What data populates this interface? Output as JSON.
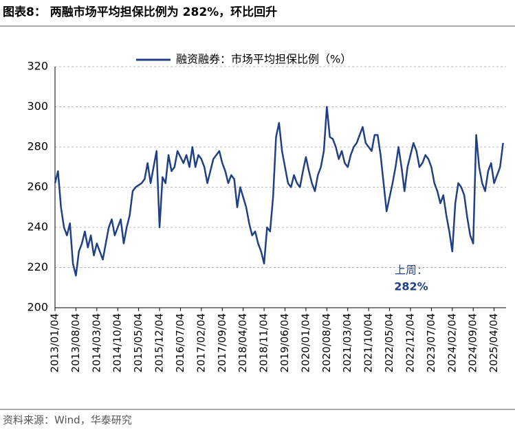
{
  "chart_data": {
    "type": "line",
    "title": "图表8：  两融市场平均担保比例为 282%，环比回升",
    "source": "资料来源：Wind，华泰研究",
    "annotation": [
      "上周：",
      "282%"
    ],
    "x": [
      "2013/01/04",
      "2013/02/04",
      "2013/03/04",
      "2013/04/04",
      "2013/05/04",
      "2013/06/04",
      "2013/07/04",
      "2013/08/04",
      "2013/09/04",
      "2013/10/04",
      "2013/11/04",
      "2013/12/04",
      "2014/01/04",
      "2014/02/04",
      "2014/03/04",
      "2014/04/04",
      "2014/05/04",
      "2014/06/04",
      "2014/07/04",
      "2014/08/04",
      "2014/09/04",
      "2014/10/04",
      "2014/11/04",
      "2014/12/04",
      "2015/01/04",
      "2015/02/04",
      "2015/03/04",
      "2015/04/04",
      "2015/05/04",
      "2015/06/04",
      "2015/07/04",
      "2015/08/04",
      "2015/09/04",
      "2015/10/04",
      "2015/11/04",
      "2015/12/04",
      "2016/01/04",
      "2016/02/04",
      "2016/03/04",
      "2016/04/04",
      "2016/05/04",
      "2016/06/04",
      "2016/07/04",
      "2016/08/04",
      "2016/09/04",
      "2016/10/04",
      "2016/11/04",
      "2016/12/04",
      "2017/01/04",
      "2017/02/04",
      "2017/03/04",
      "2017/04/04",
      "2017/05/04",
      "2017/06/04",
      "2017/07/04",
      "2017/08/04",
      "2017/09/04",
      "2017/10/04",
      "2017/11/04",
      "2017/12/04",
      "2018/01/04",
      "2018/02/04",
      "2018/03/04",
      "2018/04/04",
      "2018/05/04",
      "2018/06/04",
      "2018/07/04",
      "2018/08/04",
      "2018/09/04",
      "2018/10/04",
      "2018/11/04",
      "2018/12/04",
      "2019/01/04",
      "2019/02/04",
      "2019/03/04",
      "2019/04/04",
      "2019/05/04",
      "2019/06/04",
      "2019/07/04",
      "2019/08/04",
      "2019/09/04",
      "2019/10/04",
      "2019/11/04",
      "2019/12/04",
      "2020/01/04",
      "2020/02/04",
      "2020/03/04",
      "2020/04/04",
      "2020/05/04",
      "2020/06/04",
      "2020/07/04",
      "2020/08/04",
      "2020/09/04",
      "2020/10/04",
      "2020/11/04",
      "2020/12/04",
      "2021/01/04",
      "2021/02/04",
      "2021/03/04",
      "2021/04/04",
      "2021/05/04",
      "2021/06/04",
      "2021/07/04",
      "2021/08/04",
      "2021/09/04",
      "2021/10/04",
      "2021/11/04",
      "2021/12/04",
      "2022/01/04",
      "2022/02/04",
      "2022/03/04",
      "2022/04/04",
      "2022/05/04",
      "2022/06/04",
      "2022/07/04",
      "2022/08/04",
      "2022/09/04",
      "2022/10/04",
      "2022/11/04",
      "2022/12/04",
      "2023/01/04",
      "2023/02/04",
      "2023/03/04",
      "2023/04/04",
      "2023/05/04",
      "2023/06/04",
      "2023/07/04",
      "2023/08/04",
      "2023/09/04",
      "2023/10/04",
      "2023/11/04",
      "2023/12/04",
      "2024/01/04",
      "2024/02/04",
      "2024/03/04",
      "2024/04/04",
      "2024/05/04",
      "2024/06/04",
      "2024/07/04",
      "2024/08/04",
      "2024/09/04",
      "2024/10/04",
      "2024/11/04",
      "2024/12/04",
      "2025/01/04",
      "2025/02/04",
      "2025/03/04",
      "2025/04/04",
      "2025/05/04",
      "2025/06/04",
      "2025/07/04"
    ],
    "series": [
      {
        "name": "融资融券：市场平均担保比例（%）",
        "color": "#1f3f86",
        "values": [
          262,
          268,
          250,
          240,
          236,
          242,
          222,
          216,
          228,
          232,
          238,
          230,
          236,
          226,
          232,
          228,
          224,
          232,
          240,
          244,
          236,
          240,
          244,
          232,
          240,
          246,
          258,
          260,
          261,
          262,
          264,
          272,
          262,
          270,
          278,
          240,
          265,
          262,
          276,
          268,
          270,
          278,
          275,
          272,
          276,
          270,
          280,
          270,
          276,
          274,
          270,
          262,
          268,
          274,
          276,
          278,
          272,
          268,
          262,
          266,
          264,
          250,
          260,
          255,
          250,
          242,
          236,
          238,
          232,
          228,
          222,
          240,
          238,
          255,
          285,
          292,
          278,
          270,
          262,
          260,
          266,
          262,
          260,
          268,
          275,
          268,
          262,
          258,
          266,
          270,
          278,
          300,
          285,
          284,
          280,
          274,
          278,
          272,
          270,
          276,
          280,
          282,
          286,
          290,
          282,
          280,
          278,
          286,
          286,
          276,
          262,
          248,
          255,
          262,
          270,
          280,
          270,
          258,
          270,
          276,
          282,
          278,
          270,
          272,
          276,
          274,
          270,
          262,
          258,
          252,
          256,
          246,
          238,
          228,
          252,
          262,
          260,
          256,
          245,
          236,
          232,
          286,
          270,
          262,
          258,
          268,
          272,
          262,
          266,
          270,
          282
        ]
      }
    ],
    "ylim": [
      200,
      320
    ],
    "yticks": [
      200,
      220,
      240,
      260,
      280,
      300,
      320
    ],
    "xlim": [
      "2013/01/04",
      "2025/08/04"
    ],
    "xticks": [
      "2013/01/04",
      "2013/08/04",
      "2014/03/04",
      "2014/10/04",
      "2015/05/04",
      "2015/12/04",
      "2016/07/04",
      "2017/02/04",
      "2017/09/04",
      "2018/04/04",
      "2018/11/04",
      "2019/06/04",
      "2020/01/04",
      "2020/08/04",
      "2021/03/04",
      "2021/10/04",
      "2022/05/04",
      "2022/12/04",
      "2023/07/04",
      "2024/02/04",
      "2024/09/04",
      "2025/04/04"
    ],
    "grid": true,
    "legend": "top"
  }
}
